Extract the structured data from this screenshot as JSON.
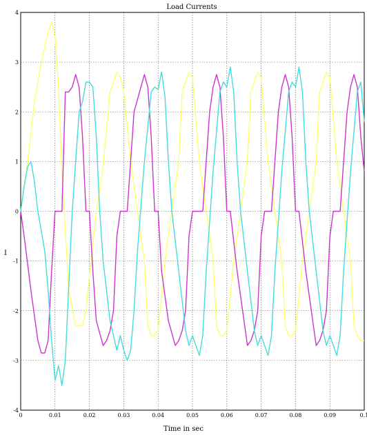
{
  "chart_data": {
    "type": "line",
    "title": "Load Currents",
    "xlabel": "Time in sec",
    "ylabel": "I",
    "xlim": [
      0,
      0.1
    ],
    "ylim": [
      -4,
      4
    ],
    "x_ticks": [
      "0",
      "0.01",
      "0.02",
      "0.03",
      "0.04",
      "0.05",
      "0.06",
      "0.07",
      "0.08",
      "0.09",
      "0.1"
    ],
    "y_ticks": [
      "4",
      "3",
      "2",
      "1",
      "0",
      "-1",
      "-2",
      "-3",
      "-4"
    ],
    "grid": true,
    "colors": [
      "#ffff66",
      "#cc33cc",
      "#44dddd"
    ],
    "series": [
      {
        "color": "#ffff66",
        "x": [
          0,
          0.002,
          0.004,
          0.006,
          0.008,
          0.009,
          0.01,
          0.011,
          0.012,
          0.014,
          0.016,
          0.017,
          0.018,
          0.019,
          0.02,
          0.022,
          0.024,
          0.026,
          0.027,
          0.028,
          0.029,
          0.03,
          0.032,
          0.034,
          0.036,
          0.037,
          0.038,
          0.039,
          0.04,
          0.042,
          0.044,
          0.046,
          0.047,
          0.048,
          0.049,
          0.05,
          0.052,
          0.054,
          0.056,
          0.057,
          0.058,
          0.059,
          0.06,
          0.062,
          0.064,
          0.066,
          0.067,
          0.068,
          0.069,
          0.07,
          0.072,
          0.074,
          0.076,
          0.077,
          0.078,
          0.079,
          0.08,
          0.082,
          0.084,
          0.086,
          0.087,
          0.088,
          0.089,
          0.09,
          0.092,
          0.094,
          0.096,
          0.097,
          0.098,
          0.099,
          0.1
        ],
        "y": [
          0,
          1.0,
          2.2,
          3.0,
          3.6,
          3.8,
          3.5,
          2.5,
          0.8,
          -1.6,
          -2.3,
          -2.3,
          -2.3,
          -2.0,
          -1.3,
          0,
          0.9,
          2.4,
          2.6,
          2.8,
          2.7,
          2.4,
          1.0,
          0,
          -1.0,
          -2.3,
          -2.5,
          -2.5,
          -2.4,
          -1.0,
          0,
          1.0,
          2.4,
          2.6,
          2.8,
          2.7,
          1.0,
          0,
          -1.0,
          -2.3,
          -2.5,
          -2.5,
          -2.4,
          -1.0,
          0,
          1.0,
          2.4,
          2.6,
          2.8,
          2.7,
          1.0,
          0,
          -1.0,
          -2.3,
          -2.5,
          -2.5,
          -2.4,
          -1.0,
          0,
          1.0,
          2.4,
          2.6,
          2.8,
          2.7,
          1.0,
          0,
          -1.0,
          -2.3,
          -2.5,
          -2.6,
          -2.6
        ]
      },
      {
        "color": "#cc33cc",
        "x": [
          0,
          0.001,
          0.003,
          0.005,
          0.006,
          0.007,
          0.008,
          0.009,
          0.01,
          0.011,
          0.012,
          0.013,
          0.014,
          0.015,
          0.016,
          0.017,
          0.018,
          0.019,
          0.02,
          0.021,
          0.022,
          0.024,
          0.025,
          0.026,
          0.027,
          0.028,
          0.029,
          0.03,
          0.031,
          0.033,
          0.035,
          0.036,
          0.037,
          0.038,
          0.039,
          0.04,
          0.041,
          0.043,
          0.045,
          0.046,
          0.047,
          0.048,
          0.049,
          0.05,
          0.051,
          0.053,
          0.055,
          0.056,
          0.057,
          0.058,
          0.059,
          0.06,
          0.061,
          0.063,
          0.065,
          0.066,
          0.067,
          0.068,
          0.069,
          0.07,
          0.071,
          0.073,
          0.075,
          0.076,
          0.077,
          0.078,
          0.079,
          0.08,
          0.081,
          0.083,
          0.085,
          0.086,
          0.087,
          0.088,
          0.089,
          0.09,
          0.091,
          0.093,
          0.095,
          0.096,
          0.097,
          0.098,
          0.099,
          0.1
        ],
        "y": [
          0,
          -0.5,
          -1.6,
          -2.6,
          -2.85,
          -2.85,
          -2.6,
          -1.2,
          0,
          0,
          0,
          2.4,
          2.4,
          2.5,
          2.75,
          2.5,
          1.5,
          0,
          0,
          -1.2,
          -2.2,
          -2.7,
          -2.6,
          -2.4,
          -2.0,
          -0.5,
          0,
          0,
          0,
          2.0,
          2.5,
          2.75,
          2.5,
          1.5,
          0,
          0,
          -1.2,
          -2.2,
          -2.7,
          -2.6,
          -2.4,
          -2.0,
          -0.5,
          0,
          0,
          0,
          2.0,
          2.5,
          2.75,
          2.5,
          1.5,
          0,
          0,
          -1.2,
          -2.2,
          -2.7,
          -2.6,
          -2.4,
          -2.0,
          -0.5,
          0,
          0,
          2.0,
          2.5,
          2.75,
          2.5,
          1.5,
          0,
          0,
          -1.2,
          -2.2,
          -2.7,
          -2.6,
          -2.4,
          -2.0,
          -0.5,
          0,
          0,
          2.0,
          2.5,
          2.75,
          2.5,
          1.5,
          0.8
        ]
      },
      {
        "color": "#44dddd",
        "x": [
          0,
          0.001,
          0.002,
          0.003,
          0.004,
          0.005,
          0.006,
          0.007,
          0.008,
          0.009,
          0.01,
          0.011,
          0.012,
          0.013,
          0.014,
          0.015,
          0.016,
          0.017,
          0.018,
          0.019,
          0.02,
          0.021,
          0.022,
          0.023,
          0.024,
          0.026,
          0.028,
          0.029,
          0.03,
          0.031,
          0.032,
          0.033,
          0.034,
          0.036,
          0.038,
          0.039,
          0.04,
          0.041,
          0.042,
          0.043,
          0.044,
          0.046,
          0.048,
          0.049,
          0.05,
          0.051,
          0.052,
          0.053,
          0.054,
          0.056,
          0.058,
          0.059,
          0.06,
          0.061,
          0.062,
          0.063,
          0.064,
          0.066,
          0.068,
          0.069,
          0.07,
          0.071,
          0.072,
          0.073,
          0.074,
          0.076,
          0.078,
          0.079,
          0.08,
          0.081,
          0.082,
          0.083,
          0.084,
          0.086,
          0.088,
          0.089,
          0.09,
          0.091,
          0.092,
          0.093,
          0.094,
          0.096,
          0.098,
          0.099,
          0.1
        ],
        "y": [
          0,
          0.5,
          0.9,
          1.0,
          0.6,
          0,
          -0.4,
          -0.8,
          -1.6,
          -2.6,
          -3.4,
          -3.1,
          -3.5,
          -3.0,
          -1.5,
          0,
          1.0,
          2.0,
          2.2,
          2.6,
          2.6,
          2.5,
          1.5,
          0,
          -1.0,
          -2.2,
          -2.8,
          -2.5,
          -2.8,
          -3.0,
          -2.8,
          -2.0,
          -0.8,
          1.0,
          2.4,
          2.5,
          2.45,
          2.8,
          2.3,
          1.0,
          0,
          -1.2,
          -2.4,
          -2.7,
          -2.5,
          -2.7,
          -2.9,
          -2.5,
          -1.2,
          0.8,
          2.4,
          2.6,
          2.5,
          2.9,
          2.4,
          1.0,
          0,
          -1.2,
          -2.4,
          -2.7,
          -2.5,
          -2.7,
          -2.9,
          -2.5,
          -1.2,
          0.8,
          2.4,
          2.6,
          2.5,
          2.9,
          2.4,
          1.0,
          0,
          -1.2,
          -2.4,
          -2.7,
          -2.5,
          -2.7,
          -2.9,
          -2.5,
          -1.2,
          0.8,
          2.4,
          2.6,
          1.8
        ]
      }
    ]
  }
}
